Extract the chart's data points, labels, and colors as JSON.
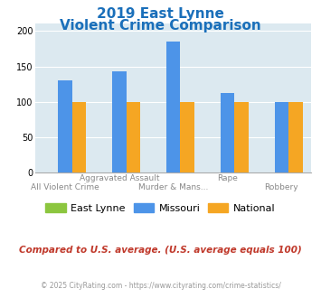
{
  "title_line1": "2019 East Lynne",
  "title_line2": "Violent Crime Comparison",
  "title_color": "#1a6fba",
  "categories_5": [
    "All Violent Crime",
    "Aggravated Assault",
    "Murder & Mans...",
    "Rape",
    "Robbery"
  ],
  "east_lynne_values": [
    0,
    0,
    0,
    0,
    0
  ],
  "missouri_values": [
    130,
    143,
    185,
    112,
    100
  ],
  "national_values": [
    100,
    100,
    100,
    100,
    100
  ],
  "east_lynne_color": "#8cc63f",
  "missouri_color": "#4d94e8",
  "national_color": "#f5a623",
  "ylim": [
    0,
    210
  ],
  "yticks": [
    0,
    50,
    100,
    150,
    200
  ],
  "plot_bg": "#dce9f0",
  "top_labels": [
    "",
    "Aggravated Assault",
    "",
    "Rape",
    ""
  ],
  "bot_labels": [
    "All Violent Crime",
    "",
    "Murder & Mans...",
    "",
    "Robbery"
  ],
  "footer_text": "Compared to U.S. average. (U.S. average equals 100)",
  "footer_color": "#c0392b",
  "copyright_text": "© 2025 CityRating.com - https://www.cityrating.com/crime-statistics/",
  "copyright_color": "#999999"
}
